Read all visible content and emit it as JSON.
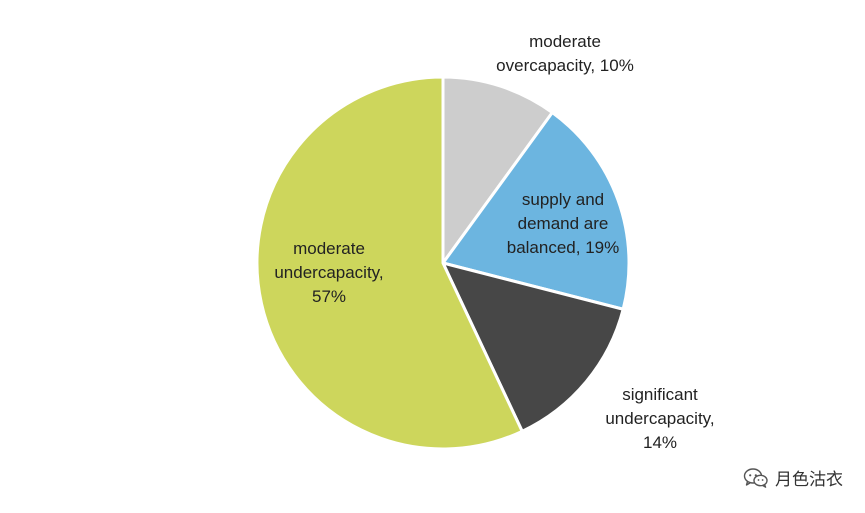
{
  "chart_data": {
    "type": "pie",
    "start_angle_deg": 0,
    "direction": "clockwise",
    "slices": [
      {
        "label_lines": [
          "moderate",
          "overcapacity, 10%"
        ],
        "value": 10,
        "color": "#cdcdcd"
      },
      {
        "label_lines": [
          "supply and",
          "demand are",
          "balanced, 19%"
        ],
        "value": 19,
        "color": "#6cb5e0"
      },
      {
        "label_lines": [
          "significant",
          "undercapacity,",
          "14%"
        ],
        "value": 14,
        "color": "#474747"
      },
      {
        "label_lines": [
          "moderate",
          "undercapacity,",
          "57%"
        ],
        "value": 57,
        "color": "#cdd65c"
      }
    ],
    "slice_border_color": "#ffffff"
  },
  "watermark": {
    "text": "月色沽衣",
    "icon": "wechat-icon"
  }
}
